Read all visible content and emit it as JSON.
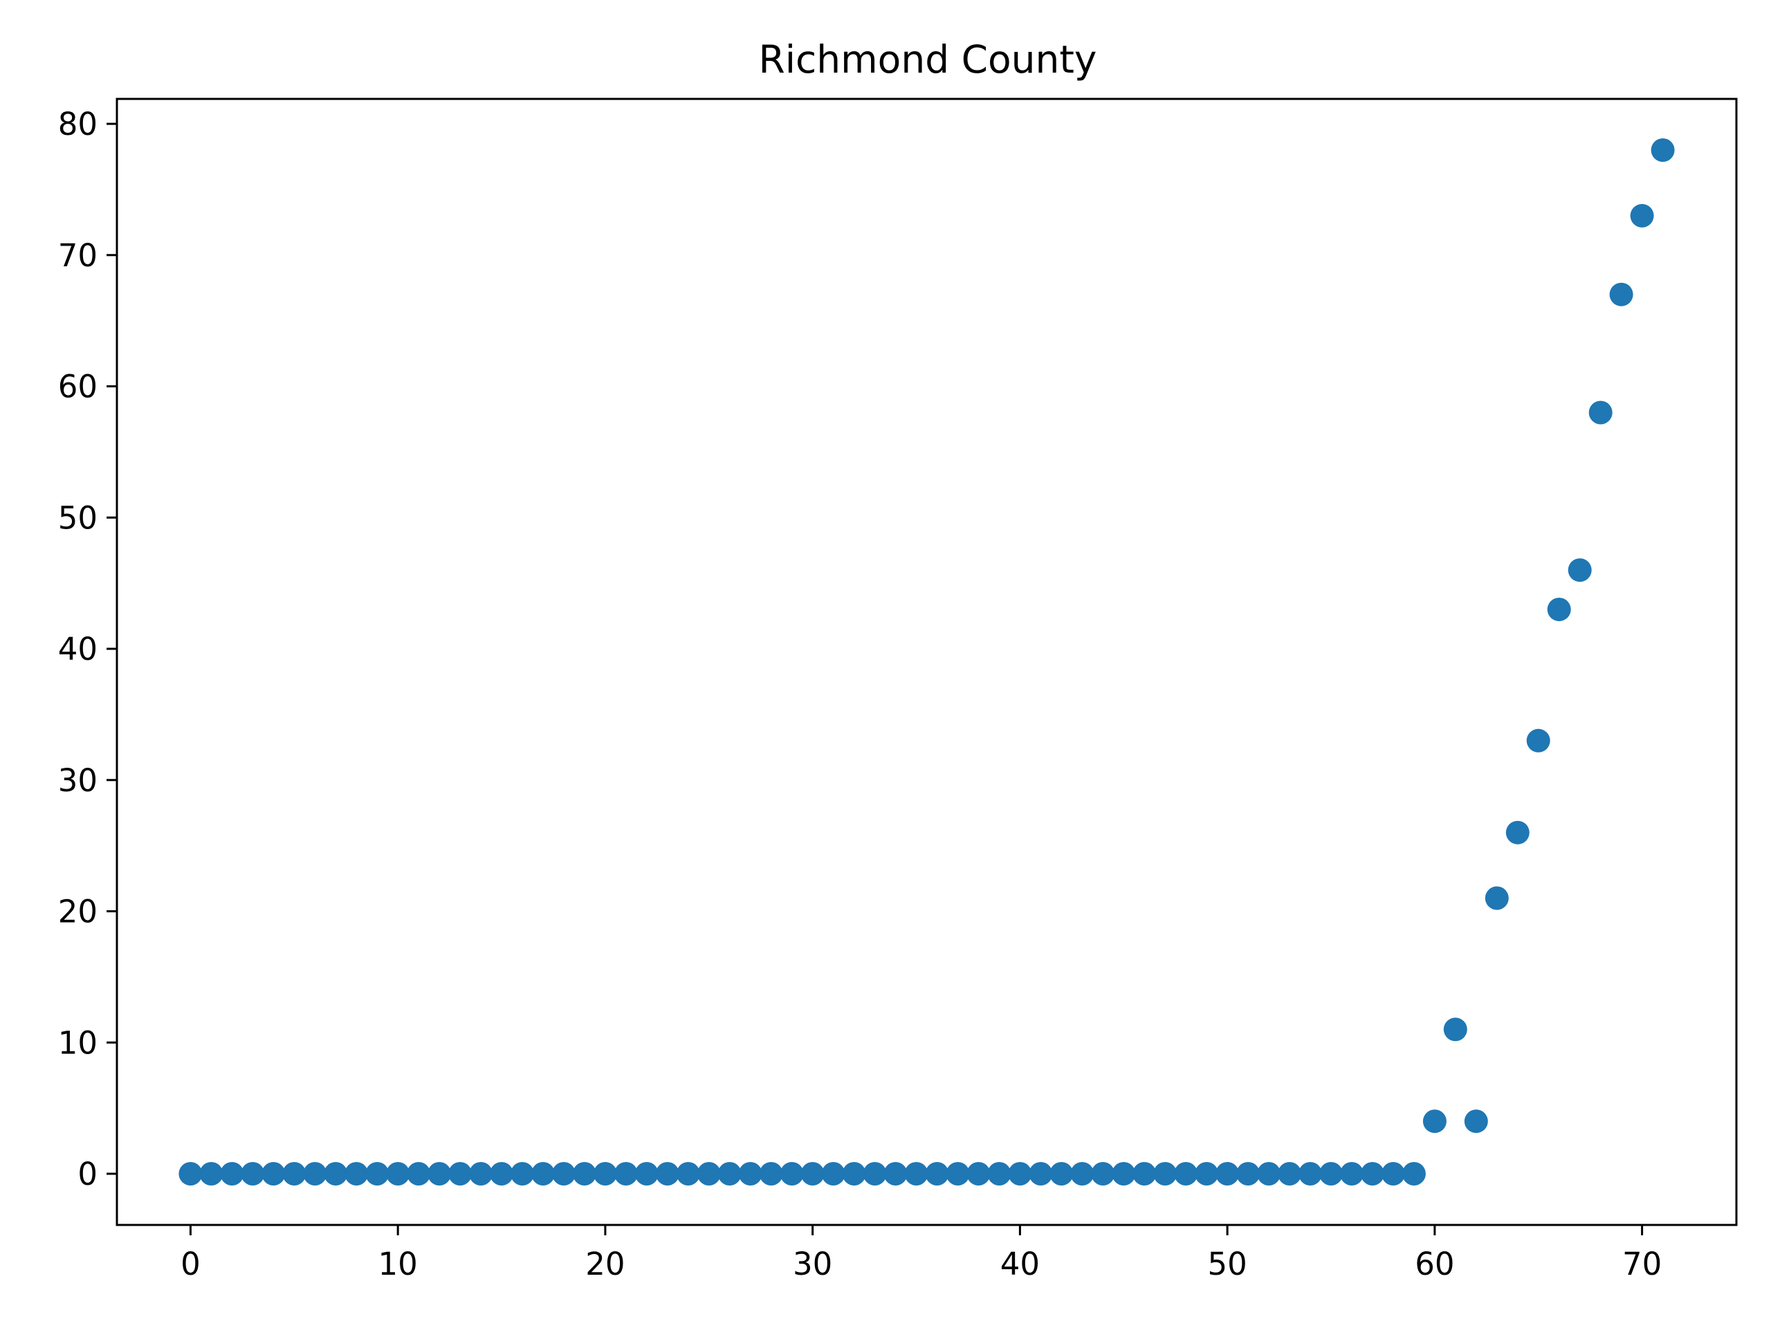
{
  "chart_data": {
    "type": "scatter",
    "title": "Richmond County",
    "xlabel": "",
    "ylabel": "",
    "xlim": [
      -3.55,
      74.55
    ],
    "ylim": [
      -3.9,
      81.9
    ],
    "x_ticks": [
      0,
      10,
      20,
      30,
      40,
      50,
      60,
      70
    ],
    "y_ticks": [
      0,
      10,
      20,
      30,
      40,
      50,
      60,
      70,
      80
    ],
    "grid": false,
    "marker_color": "#1f77b4",
    "x": [
      0,
      1,
      2,
      3,
      4,
      5,
      6,
      7,
      8,
      9,
      10,
      11,
      12,
      13,
      14,
      15,
      16,
      17,
      18,
      19,
      20,
      21,
      22,
      23,
      24,
      25,
      26,
      27,
      28,
      29,
      30,
      31,
      32,
      33,
      34,
      35,
      36,
      37,
      38,
      39,
      40,
      41,
      42,
      43,
      44,
      45,
      46,
      47,
      48,
      49,
      50,
      51,
      52,
      53,
      54,
      55,
      56,
      57,
      58,
      59,
      60,
      61,
      62,
      63,
      64,
      65,
      66,
      67,
      68,
      69,
      70,
      71
    ],
    "y": [
      0,
      0,
      0,
      0,
      0,
      0,
      0,
      0,
      0,
      0,
      0,
      0,
      0,
      0,
      0,
      0,
      0,
      0,
      0,
      0,
      0,
      0,
      0,
      0,
      0,
      0,
      0,
      0,
      0,
      0,
      0,
      0,
      0,
      0,
      0,
      0,
      0,
      0,
      0,
      0,
      0,
      0,
      0,
      0,
      0,
      0,
      0,
      0,
      0,
      0,
      0,
      0,
      0,
      0,
      0,
      0,
      0,
      0,
      0,
      0,
      4,
      11,
      4,
      21,
      26,
      33,
      43,
      46,
      58,
      67,
      73,
      78
    ]
  }
}
